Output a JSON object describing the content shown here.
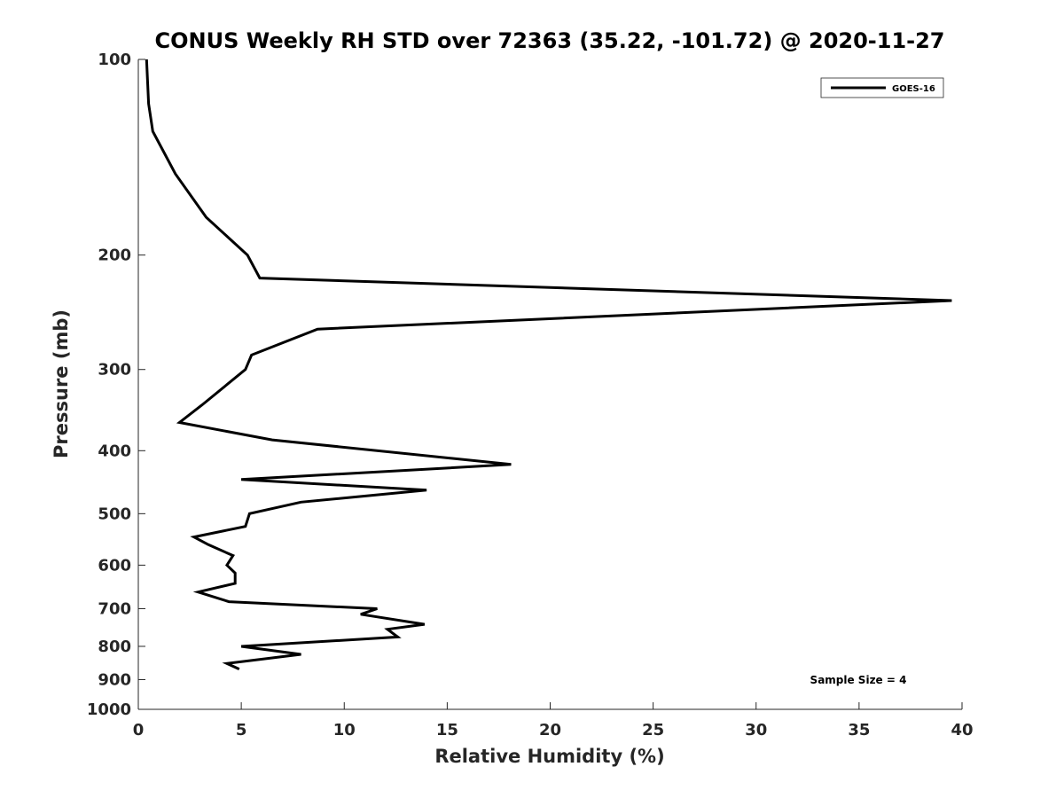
{
  "chart_data": {
    "type": "line",
    "title": "CONUS Weekly RH STD over 72363 (35.22, -101.72) @ 2020-11-27",
    "xlabel": "Relative Humidity (%)",
    "ylabel": "Pressure (mb)",
    "xlim": [
      0,
      40
    ],
    "ylim": [
      100,
      1000
    ],
    "y_scale": "log",
    "y_reversed": true,
    "xticks": [
      0,
      5,
      10,
      15,
      20,
      25,
      30,
      35,
      40
    ],
    "yticks": [
      100,
      200,
      300,
      400,
      500,
      600,
      700,
      800,
      900,
      1000
    ],
    "grid": false,
    "legend_position": "top-right",
    "annotation": "Sample Size = 4",
    "series": [
      {
        "name": "GOES-16",
        "color": "#000000",
        "points": [
          [
            0.4,
            100
          ],
          [
            0.5,
            117
          ],
          [
            0.7,
            129
          ],
          [
            1.8,
            150
          ],
          [
            3.3,
            175
          ],
          [
            5.3,
            200
          ],
          [
            5.9,
            217
          ],
          [
            39.5,
            235
          ],
          [
            8.7,
            260
          ],
          [
            5.5,
            285
          ],
          [
            5.2,
            300
          ],
          [
            3.1,
            340
          ],
          [
            2.0,
            362
          ],
          [
            6.5,
            385
          ],
          [
            18.1,
            420
          ],
          [
            5.0,
            443
          ],
          [
            14.0,
            460
          ],
          [
            7.9,
            480
          ],
          [
            5.4,
            500
          ],
          [
            5.2,
            523
          ],
          [
            2.7,
            543
          ],
          [
            3.4,
            558
          ],
          [
            4.6,
            580
          ],
          [
            4.3,
            600
          ],
          [
            4.7,
            617
          ],
          [
            4.7,
            640
          ],
          [
            2.9,
            660
          ],
          [
            4.4,
            683
          ],
          [
            11.6,
            700
          ],
          [
            10.8,
            714
          ],
          [
            13.9,
            740
          ],
          [
            12.1,
            753
          ],
          [
            12.6,
            774
          ],
          [
            5.0,
            800
          ],
          [
            7.9,
            823
          ],
          [
            4.3,
            850
          ],
          [
            4.9,
            867
          ]
        ]
      }
    ]
  }
}
